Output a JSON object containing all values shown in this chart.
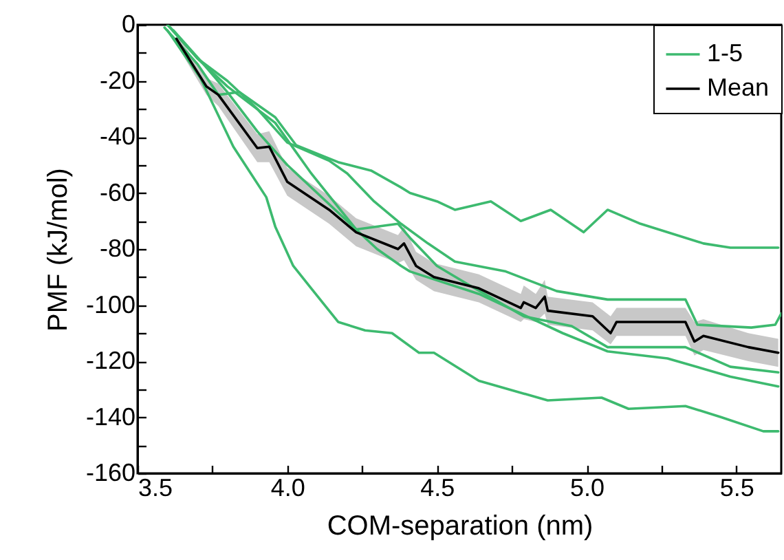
{
  "chart_data": {
    "type": "line",
    "xlabel": "COM-separation (nm)",
    "ylabel": "PMF (kJ/mol)",
    "xlim": [
      3.5,
      5.65
    ],
    "ylim": [
      -160,
      0
    ],
    "xticks": [
      3.5,
      {
        "value": 3.75,
        "label": null
      },
      {
        "value": 4,
        "label": "4.0"
      },
      {
        "value": 4.25,
        "label": null
      },
      4.5,
      {
        "value": 4.75,
        "label": null
      },
      {
        "value": 5,
        "label": "5.0"
      },
      {
        "value": 5.25,
        "label": null
      },
      5.5
    ],
    "yticks": [
      -160,
      {
        "value": -150,
        "label": null
      },
      -140,
      {
        "value": -130,
        "label": null
      },
      -120,
      {
        "value": -110,
        "label": null
      },
      -100,
      {
        "value": -90,
        "label": null
      },
      -80,
      {
        "value": -70,
        "label": null
      },
      -60,
      {
        "value": -50,
        "label": null
      },
      -40,
      {
        "value": -30,
        "label": null
      },
      -20,
      {
        "value": -10,
        "label": null
      },
      0
    ],
    "legend": "top right",
    "grid": false,
    "series": [
      {
        "name": "1-5",
        "color": "#3dba6f",
        "x": [
          3.59,
          3.7,
          3.77,
          3.84,
          3.96,
          4.03,
          4.17,
          4.28,
          4.38,
          4.41,
          4.5,
          4.56,
          4.68,
          4.78,
          4.88,
          4.99,
          5.07,
          5.18,
          5.39,
          5.48,
          5.64
        ],
        "values": [
          -1,
          -14,
          -25,
          -24,
          -33,
          -43,
          -49,
          -52,
          -58,
          -60,
          -63,
          -66,
          -63,
          -70,
          -66,
          -74,
          -66,
          -71,
          -78,
          -79.5,
          -79.5
        ]
      },
      {
        "color": "#3dba6f",
        "x": [
          3.6,
          3.7,
          3.8,
          3.9,
          4.0,
          4.14,
          4.2,
          4.29,
          4.38,
          4.47,
          4.56,
          4.73,
          4.9,
          5.07,
          5.33,
          5.37,
          5.55,
          5.63,
          5.65
        ],
        "values": [
          0,
          -12,
          -20,
          -30,
          -42,
          -48.5,
          -53,
          -63,
          -71,
          -78,
          -84.5,
          -88,
          -95,
          -98,
          -98,
          -107,
          -108,
          -107,
          -103
        ]
      },
      {
        "color": "#3dba6f",
        "x": [
          3.61,
          3.7,
          3.8,
          3.96,
          4.08,
          4.17,
          4.23,
          4.37,
          4.41,
          4.5,
          4.61,
          4.79,
          4.95,
          5.07,
          5.33,
          5.48,
          5.64
        ],
        "values": [
          -1,
          -12,
          -22,
          -35,
          -53,
          -65,
          -73,
          -71,
          -76,
          -86,
          -93,
          -104,
          -107.5,
          -115,
          -115,
          -122,
          -124
        ]
      },
      {
        "color": "#3dba6f",
        "x": [
          3.62,
          3.72,
          3.8,
          3.9,
          4.0,
          4.1,
          4.2,
          4.3,
          4.38,
          4.41,
          4.64,
          4.78,
          4.92,
          5.07,
          5.27,
          5.48,
          5.64
        ],
        "values": [
          -2,
          -14,
          -24,
          -38,
          -50,
          -60,
          -70,
          -80,
          -86,
          -88,
          -96,
          -103,
          -110,
          -116.5,
          -119,
          -125.5,
          -129
        ]
      },
      {
        "color": "#3dba6f",
        "x": [
          3.6,
          3.71,
          3.82,
          3.93,
          3.96,
          4.02,
          4.08,
          4.17,
          4.26,
          4.35,
          4.44,
          4.49,
          4.64,
          4.87,
          5.05,
          5.14,
          5.33,
          5.45,
          5.59,
          5.64
        ],
        "values": [
          -2,
          -19,
          -43.5,
          -61.5,
          -72,
          -86,
          -94,
          -106,
          -109,
          -110,
          -117,
          -117,
          -127,
          -134,
          -133,
          -137,
          -136,
          -140,
          -145,
          -145
        ]
      },
      {
        "name": "Mean",
        "color": "#000000",
        "x": [
          3.63,
          3.73,
          3.77,
          3.9,
          3.94,
          4.0,
          4.14,
          4.23,
          4.37,
          4.39,
          4.43,
          4.49,
          4.64,
          4.78,
          4.79,
          4.83,
          4.86,
          4.87,
          5.02,
          5.08,
          5.1,
          5.33,
          5.36,
          5.39,
          5.54,
          5.64
        ],
        "values": [
          -5,
          -22,
          -25,
          -44,
          -43.5,
          -56,
          -66,
          -74,
          -80,
          -78,
          -86,
          -90,
          -94,
          -101,
          -99,
          -101,
          -97,
          -102,
          -104,
          -110,
          -106,
          -106,
          -113,
          -111,
          -115,
          -117
        ],
        "lower": [
          -7,
          -25,
          -29,
          -49,
          -49,
          -61,
          -71,
          -79,
          -85,
          -84,
          -91,
          -95,
          -99,
          -106,
          -105,
          -106,
          -103,
          -107,
          -109,
          -114,
          -111,
          -111,
          -118,
          -116,
          -120,
          -122
        ],
        "upper": [
          -3,
          -19,
          -21,
          -39,
          -38,
          -51,
          -61,
          -69,
          -75,
          -72,
          -81,
          -85,
          -89,
          -96,
          -93,
          -96,
          -91,
          -97,
          -99,
          -104,
          -101,
          -101,
          -106,
          -105,
          -110,
          -112
        ]
      }
    ]
  }
}
